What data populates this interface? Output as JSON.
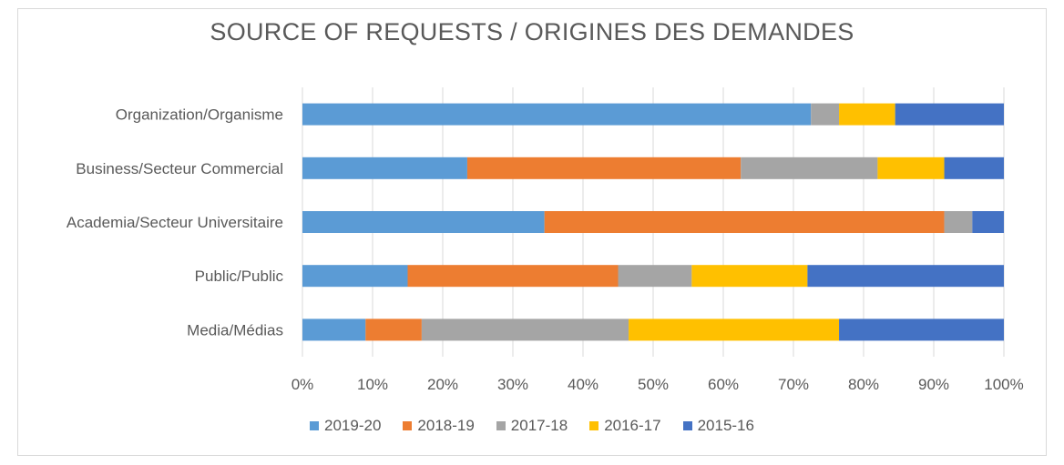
{
  "chart_data": {
    "type": "bar",
    "orientation": "horizontal",
    "stacked": "percent",
    "title": "SOURCE OF REQUESTS / ORIGINES DES DEMANDES",
    "categories": [
      "Organization/Organisme",
      "Business/Secteur Commercial",
      "Academia/Secteur Universitaire",
      "Public/Public",
      "Media/Médias"
    ],
    "series": [
      {
        "name": "2019-20",
        "color": "#5b9bd5",
        "values": [
          72.5,
          23.5,
          34.5,
          15.0,
          9.0
        ]
      },
      {
        "name": "2018-19",
        "color": "#ed7d31",
        "values": [
          0.0,
          39.0,
          57.0,
          30.0,
          8.0
        ]
      },
      {
        "name": "2017-18",
        "color": "#a5a5a5",
        "values": [
          4.0,
          19.5,
          4.0,
          10.5,
          29.5
        ]
      },
      {
        "name": "2016-17",
        "color": "#ffc000",
        "values": [
          8.0,
          9.5,
          0.0,
          16.5,
          30.0
        ]
      },
      {
        "name": "2015-16",
        "color": "#4472c4",
        "values": [
          15.5,
          8.5,
          4.5,
          28.0,
          23.5
        ]
      }
    ],
    "xlim": [
      0,
      100
    ],
    "xticks": [
      "0%",
      "10%",
      "20%",
      "30%",
      "40%",
      "50%",
      "60%",
      "70%",
      "80%",
      "90%",
      "100%"
    ],
    "grid": true,
    "legend_position": "bottom"
  }
}
